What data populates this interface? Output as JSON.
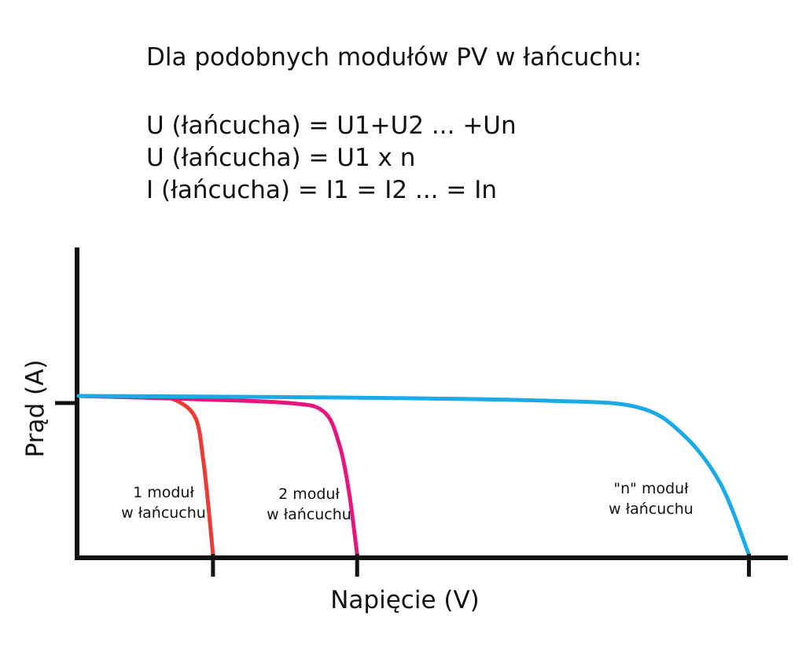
{
  "header": {
    "intro": "Dla podobnych modułów PV w łańcuchu:",
    "formulas": [
      "U (łańcucha) = U1+U2 ... +Un",
      "U (łańcucha) = U1 x n",
      "I (łańcucha) = I1 = I2 ... = In"
    ]
  },
  "chart_data": {
    "type": "line",
    "xlabel": "Napięcie (V)",
    "ylabel": "Prąd (A)",
    "series": [
      {
        "label_lines": [
          "1 moduł",
          "w łańcuchu"
        ],
        "color": "#ee3a34",
        "points": [
          [
            0,
            1.0
          ],
          [
            0.1,
            0.99
          ],
          [
            0.13,
            0.97
          ],
          [
            0.155,
            0.86
          ],
          [
            0.165,
            0.6
          ],
          [
            0.172,
            0.3
          ],
          [
            0.178,
            0.0
          ]
        ]
      },
      {
        "label_lines": [
          "2 moduł",
          "w łańcuchu"
        ],
        "color": "#e5177f",
        "points": [
          [
            0,
            1.0
          ],
          [
            0.15,
            0.98
          ],
          [
            0.28,
            0.955
          ],
          [
            0.325,
            0.9
          ],
          [
            0.345,
            0.7
          ],
          [
            0.358,
            0.4
          ],
          [
            0.369,
            0.0
          ]
        ]
      },
      {
        "label_lines": [
          "\"n\" moduł",
          "w łańcuchu"
        ],
        "color": "#1aabe6",
        "points": [
          [
            0,
            1.0
          ],
          [
            0.35,
            0.99
          ],
          [
            0.62,
            0.97
          ],
          [
            0.74,
            0.93
          ],
          [
            0.8,
            0.76
          ],
          [
            0.85,
            0.45
          ],
          [
            0.888,
            0.0
          ]
        ]
      }
    ]
  }
}
